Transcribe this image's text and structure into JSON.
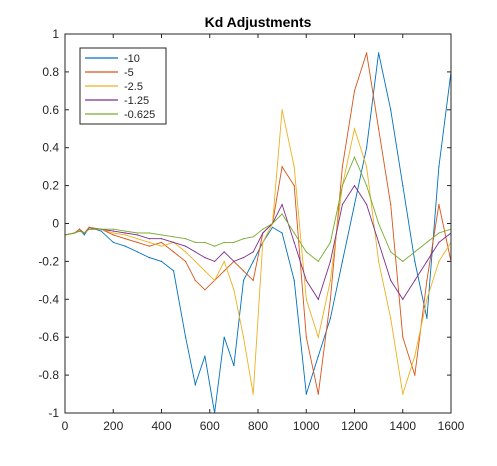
{
  "chart_data": {
    "type": "line",
    "title": "Kd Adjustments",
    "xlabel": "",
    "ylabel": "",
    "xlim": [
      0,
      1600
    ],
    "ylim": [
      -1,
      1
    ],
    "x_ticks": [
      0,
      200,
      400,
      600,
      800,
      1000,
      1200,
      1400,
      1600
    ],
    "y_ticks": [
      -1,
      -0.8,
      -0.6,
      -0.4,
      -0.2,
      0,
      0.2,
      0.4,
      0.6,
      0.8,
      1
    ],
    "x_tick_labels": [
      "0",
      "200",
      "400",
      "600",
      "800",
      "1000",
      "1200",
      "1400",
      "1600"
    ],
    "y_tick_labels": [
      "-1",
      "-0.8",
      "-0.6",
      "-0.4",
      "-0.2",
      "0",
      "0.2",
      "0.4",
      "0.6",
      "0.8",
      "1"
    ],
    "grid": false,
    "legend_position": "top-left",
    "series": [
      {
        "name": "-10",
        "color": "#0072BD",
        "x": [
          0,
          40,
          60,
          80,
          100,
          150,
          200,
          250,
          300,
          350,
          400,
          450,
          500,
          540,
          580,
          620,
          660,
          700,
          740,
          780,
          820,
          860,
          900,
          950,
          1000,
          1050,
          1100,
          1150,
          1200,
          1250,
          1300,
          1350,
          1400,
          1450,
          1500,
          1550,
          1600
        ],
        "values": [
          -0.06,
          -0.05,
          -0.03,
          -0.06,
          -0.02,
          -0.04,
          -0.1,
          -0.12,
          -0.15,
          -0.18,
          -0.2,
          -0.25,
          -0.6,
          -0.85,
          -0.7,
          -1.0,
          -0.6,
          -0.75,
          -0.3,
          -0.2,
          -0.1,
          -0.02,
          -0.05,
          -0.3,
          -0.9,
          -0.7,
          -0.5,
          -0.2,
          0.1,
          0.4,
          0.9,
          0.6,
          0.2,
          -0.2,
          -0.5,
          0.3,
          0.8
        ]
      },
      {
        "name": "-5",
        "color": "#D95319",
        "x": [
          0,
          40,
          60,
          80,
          100,
          150,
          200,
          250,
          300,
          350,
          400,
          450,
          500,
          540,
          580,
          620,
          660,
          700,
          740,
          780,
          820,
          860,
          900,
          950,
          1000,
          1050,
          1100,
          1150,
          1200,
          1250,
          1300,
          1350,
          1400,
          1450,
          1500,
          1550,
          1600
        ],
        "values": [
          -0.06,
          -0.05,
          -0.03,
          -0.05,
          -0.02,
          -0.03,
          -0.06,
          -0.08,
          -0.1,
          -0.12,
          -0.1,
          -0.15,
          -0.2,
          -0.3,
          -0.35,
          -0.3,
          -0.25,
          -0.2,
          -0.25,
          -0.3,
          -0.05,
          0.0,
          0.3,
          0.2,
          -0.6,
          -0.9,
          -0.4,
          0.3,
          0.7,
          0.9,
          0.5,
          0.1,
          -0.6,
          -0.8,
          -0.3,
          0.1,
          -0.2
        ]
      },
      {
        "name": "-2.5",
        "color": "#EDB120",
        "x": [
          0,
          40,
          60,
          80,
          100,
          150,
          200,
          250,
          300,
          350,
          400,
          450,
          500,
          540,
          580,
          620,
          660,
          700,
          740,
          780,
          820,
          860,
          900,
          950,
          1000,
          1050,
          1100,
          1150,
          1200,
          1250,
          1300,
          1350,
          1400,
          1450,
          1500,
          1550,
          1600
        ],
        "values": [
          -0.06,
          -0.05,
          -0.04,
          -0.05,
          -0.03,
          -0.03,
          -0.05,
          -0.06,
          -0.08,
          -0.1,
          -0.12,
          -0.1,
          -0.15,
          -0.2,
          -0.25,
          -0.3,
          -0.2,
          -0.35,
          -0.6,
          -0.9,
          -0.1,
          0.0,
          0.6,
          0.3,
          -0.4,
          -0.6,
          -0.3,
          0.2,
          0.5,
          0.3,
          -0.2,
          -0.5,
          -0.9,
          -0.7,
          -0.4,
          -0.2,
          -0.1
        ]
      },
      {
        "name": "-1.25",
        "color": "#7E2F8E",
        "x": [
          0,
          40,
          60,
          80,
          100,
          150,
          200,
          250,
          300,
          350,
          400,
          450,
          500,
          540,
          580,
          620,
          660,
          700,
          740,
          780,
          820,
          860,
          900,
          950,
          1000,
          1050,
          1100,
          1150,
          1200,
          1250,
          1300,
          1350,
          1400,
          1450,
          1500,
          1550,
          1600
        ],
        "values": [
          -0.06,
          -0.05,
          -0.04,
          -0.05,
          -0.03,
          -0.03,
          -0.04,
          -0.05,
          -0.06,
          -0.08,
          -0.08,
          -0.1,
          -0.12,
          -0.15,
          -0.18,
          -0.2,
          -0.15,
          -0.2,
          -0.18,
          -0.15,
          -0.05,
          0.0,
          0.1,
          -0.1,
          -0.3,
          -0.4,
          -0.2,
          0.1,
          0.2,
          0.1,
          -0.1,
          -0.3,
          -0.4,
          -0.3,
          -0.2,
          -0.1,
          -0.05
        ]
      },
      {
        "name": "-0.625",
        "color": "#77AC30",
        "x": [
          0,
          40,
          60,
          80,
          100,
          150,
          200,
          250,
          300,
          350,
          400,
          450,
          500,
          540,
          580,
          620,
          660,
          700,
          740,
          780,
          820,
          860,
          900,
          950,
          1000,
          1050,
          1100,
          1150,
          1200,
          1250,
          1300,
          1350,
          1400,
          1450,
          1500,
          1550,
          1600
        ],
        "values": [
          -0.06,
          -0.05,
          -0.04,
          -0.05,
          -0.03,
          -0.03,
          -0.03,
          -0.04,
          -0.05,
          -0.05,
          -0.06,
          -0.07,
          -0.08,
          -0.1,
          -0.1,
          -0.12,
          -0.1,
          -0.1,
          -0.08,
          -0.07,
          -0.03,
          0.0,
          0.05,
          -0.05,
          -0.15,
          -0.2,
          -0.1,
          0.2,
          0.35,
          0.2,
          0.0,
          -0.15,
          -0.2,
          -0.15,
          -0.1,
          -0.05,
          -0.03
        ]
      }
    ]
  }
}
